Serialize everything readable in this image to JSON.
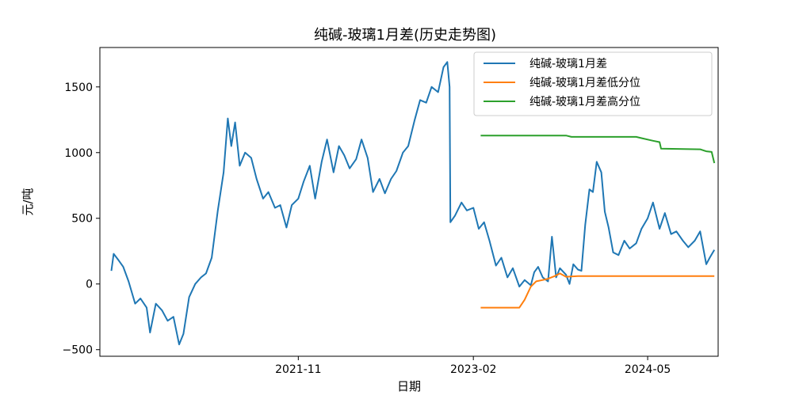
{
  "chart_data": {
    "type": "line",
    "title": "纯碱-玻璃1月差(历史走势图)",
    "xlabel": "日期",
    "ylabel": "元/吨",
    "xlim": [
      "2020-06-01",
      "2024-11-01"
    ],
    "ylim": [
      -550,
      1800
    ],
    "x_ticks": [
      {
        "label": "2021-11",
        "date": "2021-11-01"
      },
      {
        "label": "2023-02",
        "date": "2023-02-01"
      },
      {
        "label": "2024-05",
        "date": "2024-05-01"
      }
    ],
    "y_ticks": [
      {
        "label": "−500",
        "value": -500
      },
      {
        "label": "0",
        "value": 0
      },
      {
        "label": "500",
        "value": 500
      },
      {
        "label": "1000",
        "value": 1000
      },
      {
        "label": "1500",
        "value": 1500
      }
    ],
    "legend_position": "top-right",
    "grid": false,
    "series": [
      {
        "name": "纯碱-玻璃1月差",
        "color": "#1f77b4",
        "points": [
          [
            "2020-07-01",
            100
          ],
          [
            "2020-07-07",
            230
          ],
          [
            "2020-07-20",
            180
          ],
          [
            "2020-08-01",
            130
          ],
          [
            "2020-08-15",
            20
          ],
          [
            "2020-09-01",
            -150
          ],
          [
            "2020-09-15",
            -110
          ],
          [
            "2020-10-01",
            -180
          ],
          [
            "2020-10-10",
            -370
          ],
          [
            "2020-10-25",
            -150
          ],
          [
            "2020-11-10",
            -200
          ],
          [
            "2020-11-25",
            -280
          ],
          [
            "2020-12-10",
            -250
          ],
          [
            "2020-12-25",
            -460
          ],
          [
            "2021-01-05",
            -380
          ],
          [
            "2021-01-20",
            -100
          ],
          [
            "2021-02-05",
            0
          ],
          [
            "2021-02-20",
            50
          ],
          [
            "2021-03-05",
            80
          ],
          [
            "2021-03-20",
            200
          ],
          [
            "2021-04-05",
            560
          ],
          [
            "2021-04-20",
            850
          ],
          [
            "2021-05-01",
            1260
          ],
          [
            "2021-05-10",
            1050
          ],
          [
            "2021-05-20",
            1230
          ],
          [
            "2021-06-01",
            900
          ],
          [
            "2021-06-15",
            1000
          ],
          [
            "2021-07-01",
            960
          ],
          [
            "2021-07-15",
            800
          ],
          [
            "2021-08-01",
            650
          ],
          [
            "2021-08-15",
            700
          ],
          [
            "2021-09-01",
            580
          ],
          [
            "2021-09-15",
            600
          ],
          [
            "2021-10-01",
            430
          ],
          [
            "2021-10-15",
            600
          ],
          [
            "2021-11-01",
            650
          ],
          [
            "2021-11-15",
            780
          ],
          [
            "2021-12-01",
            900
          ],
          [
            "2021-12-15",
            650
          ],
          [
            "2022-01-01",
            930
          ],
          [
            "2022-01-15",
            1100
          ],
          [
            "2022-02-01",
            850
          ],
          [
            "2022-02-15",
            1050
          ],
          [
            "2022-03-01",
            980
          ],
          [
            "2022-03-15",
            880
          ],
          [
            "2022-04-01",
            950
          ],
          [
            "2022-04-15",
            1100
          ],
          [
            "2022-05-01",
            960
          ],
          [
            "2022-05-15",
            700
          ],
          [
            "2022-06-01",
            800
          ],
          [
            "2022-06-15",
            690
          ],
          [
            "2022-07-01",
            800
          ],
          [
            "2022-07-15",
            860
          ],
          [
            "2022-08-01",
            1000
          ],
          [
            "2022-08-15",
            1050
          ],
          [
            "2022-09-01",
            1250
          ],
          [
            "2022-09-15",
            1400
          ],
          [
            "2022-10-01",
            1380
          ],
          [
            "2022-10-15",
            1500
          ],
          [
            "2022-11-01",
            1460
          ],
          [
            "2022-11-15",
            1650
          ],
          [
            "2022-11-25",
            1690
          ],
          [
            "2022-12-01",
            1500
          ],
          [
            "2022-12-03",
            470
          ],
          [
            "2022-12-15",
            520
          ],
          [
            "2023-01-01",
            620
          ],
          [
            "2023-01-15",
            560
          ],
          [
            "2023-02-01",
            580
          ],
          [
            "2023-02-15",
            420
          ],
          [
            "2023-03-01",
            470
          ],
          [
            "2023-03-15",
            330
          ],
          [
            "2023-04-01",
            140
          ],
          [
            "2023-04-15",
            200
          ],
          [
            "2023-05-01",
            50
          ],
          [
            "2023-05-15",
            120
          ],
          [
            "2023-06-01",
            -20
          ],
          [
            "2023-06-15",
            30
          ],
          [
            "2023-07-01",
            -10
          ],
          [
            "2023-07-10",
            90
          ],
          [
            "2023-07-20",
            130
          ],
          [
            "2023-08-01",
            50
          ],
          [
            "2023-08-15",
            20
          ],
          [
            "2023-08-25",
            360
          ],
          [
            "2023-09-05",
            50
          ],
          [
            "2023-09-15",
            120
          ],
          [
            "2023-10-01",
            70
          ],
          [
            "2023-10-10",
            0
          ],
          [
            "2023-10-20",
            150
          ],
          [
            "2023-11-01",
            110
          ],
          [
            "2023-11-10",
            100
          ],
          [
            "2023-11-20",
            450
          ],
          [
            "2023-12-01",
            720
          ],
          [
            "2023-12-10",
            700
          ],
          [
            "2023-12-20",
            930
          ],
          [
            "2024-01-01",
            850
          ],
          [
            "2024-01-10",
            550
          ],
          [
            "2024-01-20",
            430
          ],
          [
            "2024-02-01",
            240
          ],
          [
            "2024-02-15",
            220
          ],
          [
            "2024-03-01",
            330
          ],
          [
            "2024-03-15",
            270
          ],
          [
            "2024-04-01",
            310
          ],
          [
            "2024-04-15",
            420
          ],
          [
            "2024-05-01",
            500
          ],
          [
            "2024-05-15",
            620
          ],
          [
            "2024-06-01",
            420
          ],
          [
            "2024-06-15",
            540
          ],
          [
            "2024-07-01",
            380
          ],
          [
            "2024-07-15",
            400
          ],
          [
            "2024-08-01",
            330
          ],
          [
            "2024-08-15",
            280
          ],
          [
            "2024-09-01",
            330
          ],
          [
            "2024-09-15",
            400
          ],
          [
            "2024-10-01",
            150
          ],
          [
            "2024-10-10",
            200
          ],
          [
            "2024-10-22",
            260
          ]
        ]
      },
      {
        "name": "纯碱-玻璃1月差低分位",
        "color": "#ff7f0e",
        "points": [
          [
            "2023-02-20",
            -180
          ],
          [
            "2023-06-01",
            -180
          ],
          [
            "2023-06-15",
            -120
          ],
          [
            "2023-07-01",
            -20
          ],
          [
            "2023-07-15",
            20
          ],
          [
            "2023-08-01",
            30
          ],
          [
            "2023-08-15",
            40
          ],
          [
            "2023-09-01",
            60
          ],
          [
            "2023-09-15",
            80
          ],
          [
            "2023-10-01",
            55
          ],
          [
            "2023-11-01",
            60
          ],
          [
            "2024-10-22",
            60
          ]
        ]
      },
      {
        "name": "纯碱-玻璃1月差高分位",
        "color": "#2ca02c",
        "points": [
          [
            "2023-02-20",
            1130
          ],
          [
            "2023-10-01",
            1130
          ],
          [
            "2023-10-15",
            1120
          ],
          [
            "2024-04-01",
            1120
          ],
          [
            "2024-04-15",
            1110
          ],
          [
            "2024-05-15",
            1090
          ],
          [
            "2024-06-01",
            1080
          ],
          [
            "2024-06-05",
            1030
          ],
          [
            "2024-09-15",
            1025
          ],
          [
            "2024-10-01",
            1010
          ],
          [
            "2024-10-15",
            1005
          ],
          [
            "2024-10-22",
            920
          ]
        ]
      }
    ]
  }
}
